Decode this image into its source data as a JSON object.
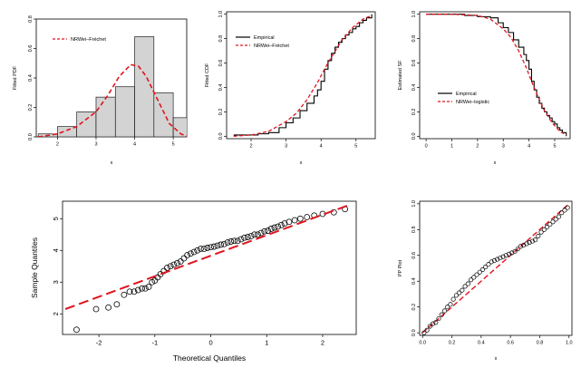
{
  "colors": {
    "fit": "#e0141e",
    "emp": "#000000",
    "bar_fill": "#d3d3d3",
    "point": "#000000"
  },
  "chart_data": [
    {
      "id": "pdf",
      "type": "bar",
      "title": "",
      "xlabel": "x",
      "ylabel": "Fitted PDF",
      "xlim": [
        1.45,
        5.35
      ],
      "ylim": [
        0,
        0.8
      ],
      "xticks": [
        2,
        3,
        4,
        5
      ],
      "yticks": [
        0.0,
        0.2,
        0.4,
        0.6,
        0.8
      ],
      "bins": [
        {
          "x0": 1.5,
          "x1": 2.0,
          "value": 0.02
        },
        {
          "x0": 2.0,
          "x1": 2.5,
          "value": 0.07
        },
        {
          "x0": 2.5,
          "x1": 3.0,
          "value": 0.17
        },
        {
          "x0": 3.0,
          "x1": 3.5,
          "value": 0.27
        },
        {
          "x0": 3.5,
          "x1": 4.0,
          "value": 0.34
        },
        {
          "x0": 4.0,
          "x1": 4.5,
          "value": 0.68
        },
        {
          "x0": 4.5,
          "x1": 5.0,
          "value": 0.3
        },
        {
          "x0": 5.0,
          "x1": 5.5,
          "value": 0.13
        }
      ],
      "curve": {
        "name": "NRWei–Fréchet",
        "x": [
          1.5,
          2.0,
          2.5,
          3.0,
          3.3,
          3.6,
          3.9,
          4.1,
          4.3,
          4.6,
          4.9,
          5.2,
          5.35
        ],
        "y": [
          0.0,
          0.02,
          0.07,
          0.17,
          0.28,
          0.41,
          0.49,
          0.48,
          0.41,
          0.25,
          0.09,
          0.02,
          0.005
        ]
      },
      "legend": [
        {
          "label": "NRWei–Fréchet",
          "style": "dashed-red"
        }
      ],
      "legend_position": "top-left"
    },
    {
      "id": "cdf",
      "type": "line",
      "xlabel": "x",
      "ylabel": "Fitted CDF",
      "xlim": [
        1.3,
        5.55
      ],
      "ylim": [
        -0.02,
        1.02
      ],
      "xticks": [
        2,
        3,
        4,
        5
      ],
      "yticks": [
        0.0,
        0.2,
        0.4,
        0.6,
        0.8,
        1.0
      ],
      "series": [
        {
          "name": "Empirical",
          "style": "step",
          "x": [
            1.5,
            2.2,
            2.5,
            2.8,
            3.0,
            3.2,
            3.4,
            3.6,
            3.8,
            3.9,
            4.0,
            4.1,
            4.2,
            4.3,
            4.4,
            4.5,
            4.6,
            4.7,
            4.8,
            4.9,
            5.0,
            5.1,
            5.2,
            5.3,
            5.45
          ],
          "y": [
            0.01,
            0.02,
            0.03,
            0.07,
            0.11,
            0.15,
            0.21,
            0.27,
            0.33,
            0.38,
            0.45,
            0.55,
            0.62,
            0.68,
            0.73,
            0.77,
            0.8,
            0.83,
            0.85,
            0.88,
            0.9,
            0.93,
            0.95,
            0.97,
            1.0
          ]
        },
        {
          "name": "NRWei–Fréchet",
          "style": "dashed",
          "x": [
            1.5,
            2.0,
            2.5,
            3.0,
            3.3,
            3.6,
            3.9,
            4.1,
            4.3,
            4.6,
            4.9,
            5.2,
            5.45
          ],
          "y": [
            0.0,
            0.01,
            0.04,
            0.12,
            0.19,
            0.3,
            0.44,
            0.55,
            0.65,
            0.79,
            0.89,
            0.96,
            0.99
          ]
        }
      ],
      "legend": [
        {
          "label": "Empirical",
          "style": "solid-black"
        },
        {
          "label": "NRWei–Fréchet",
          "style": "dashed-red"
        }
      ],
      "legend_position": "top-left"
    },
    {
      "id": "sf",
      "type": "line",
      "xlabel": "x",
      "ylabel": "Estimated SF",
      "xlim": [
        -0.25,
        5.6
      ],
      "ylim": [
        -0.02,
        1.02
      ],
      "xticks": [
        0,
        1,
        2,
        3,
        4,
        5
      ],
      "yticks": [
        0.0,
        0.2,
        0.4,
        0.6,
        0.8,
        1.0
      ],
      "series": [
        {
          "name": "Empirical",
          "style": "step",
          "x": [
            0.0,
            1.5,
            2.0,
            2.5,
            2.8,
            3.0,
            3.2,
            3.4,
            3.6,
            3.8,
            3.9,
            4.0,
            4.1,
            4.2,
            4.3,
            4.4,
            4.5,
            4.6,
            4.7,
            4.8,
            4.9,
            5.0,
            5.1,
            5.2,
            5.3,
            5.45
          ],
          "y": [
            1.0,
            0.99,
            0.98,
            0.97,
            0.93,
            0.89,
            0.85,
            0.79,
            0.73,
            0.67,
            0.62,
            0.55,
            0.45,
            0.38,
            0.32,
            0.27,
            0.23,
            0.2,
            0.17,
            0.15,
            0.12,
            0.1,
            0.07,
            0.05,
            0.03,
            0.0
          ]
        },
        {
          "name": "NRWei–logistic",
          "style": "dashed",
          "x": [
            0.0,
            1.0,
            2.0,
            2.5,
            3.0,
            3.3,
            3.6,
            3.9,
            4.1,
            4.3,
            4.6,
            4.9,
            5.2,
            5.45
          ],
          "y": [
            1.0,
            1.0,
            0.99,
            0.96,
            0.88,
            0.81,
            0.7,
            0.56,
            0.45,
            0.35,
            0.21,
            0.11,
            0.04,
            0.01
          ]
        }
      ],
      "legend": [
        {
          "label": "Empirical",
          "style": "solid-black"
        },
        {
          "label": "NRWei–logistic",
          "style": "dashed-red"
        }
      ],
      "legend_position": "right"
    },
    {
      "id": "qq",
      "type": "scatter",
      "xlabel": "Theoretical Quantiles",
      "ylabel": "Sample Quantiles",
      "xlim": [
        -2.65,
        2.6
      ],
      "ylim": [
        1.35,
        5.55
      ],
      "xticks": [
        -2,
        -1,
        0,
        1,
        2
      ],
      "yticks": [
        2,
        3,
        4,
        5
      ],
      "points": {
        "x": [
          -2.4,
          -2.05,
          -1.83,
          -1.68,
          -1.55,
          -1.45,
          -1.37,
          -1.3,
          -1.23,
          -1.17,
          -1.11,
          -1.05,
          -1.0,
          -0.95,
          -0.9,
          -0.84,
          -0.78,
          -0.72,
          -0.66,
          -0.6,
          -0.54,
          -0.48,
          -0.42,
          -0.36,
          -0.3,
          -0.24,
          -0.18,
          -0.12,
          -0.06,
          0.0,
          0.06,
          0.12,
          0.18,
          0.24,
          0.3,
          0.36,
          0.42,
          0.48,
          0.54,
          0.6,
          0.66,
          0.72,
          0.78,
          0.84,
          0.9,
          0.96,
          1.02,
          1.08,
          1.14,
          1.2,
          1.26,
          1.32,
          1.4,
          1.5,
          1.6,
          1.72,
          1.85,
          2.0,
          2.2,
          2.4
        ],
        "y": [
          1.5,
          2.15,
          2.2,
          2.3,
          2.6,
          2.7,
          2.7,
          2.75,
          2.8,
          2.8,
          2.85,
          3.0,
          3.05,
          3.15,
          3.25,
          3.35,
          3.45,
          3.5,
          3.55,
          3.6,
          3.65,
          3.75,
          3.85,
          3.9,
          3.95,
          4.0,
          4.05,
          4.05,
          4.08,
          4.1,
          4.12,
          4.15,
          4.18,
          4.2,
          4.25,
          4.28,
          4.3,
          4.3,
          4.35,
          4.4,
          4.42,
          4.45,
          4.5,
          4.5,
          4.55,
          4.6,
          4.62,
          4.68,
          4.72,
          4.75,
          4.8,
          4.85,
          4.9,
          4.95,
          5.0,
          5.05,
          5.1,
          5.15,
          5.2,
          5.3
        ]
      },
      "reference_line": {
        "x": [
          -2.6,
          2.5
        ],
        "y": [
          2.15,
          5.45
        ]
      }
    },
    {
      "id": "pp",
      "type": "scatter",
      "xlabel": "x",
      "ylabel": "PP Plot",
      "xlim": [
        -0.02,
        1.02
      ],
      "ylim": [
        -0.02,
        1.02
      ],
      "xticks": [
        0.0,
        0.2,
        0.4,
        0.6,
        0.8,
        1.0
      ],
      "yticks": [
        0.0,
        0.2,
        0.4,
        0.6,
        0.8,
        1.0
      ],
      "points": {
        "x": [
          0.01,
          0.03,
          0.05,
          0.07,
          0.09,
          0.11,
          0.13,
          0.15,
          0.17,
          0.19,
          0.21,
          0.23,
          0.25,
          0.27,
          0.29,
          0.31,
          0.33,
          0.35,
          0.37,
          0.39,
          0.41,
          0.43,
          0.45,
          0.47,
          0.49,
          0.51,
          0.53,
          0.55,
          0.57,
          0.59,
          0.61,
          0.63,
          0.65,
          0.67,
          0.69,
          0.71,
          0.73,
          0.75,
          0.77,
          0.79,
          0.81,
          0.83,
          0.85,
          0.87,
          0.89,
          0.91,
          0.93,
          0.95,
          0.97,
          0.99
        ],
        "y": [
          0.0,
          0.02,
          0.05,
          0.07,
          0.08,
          0.11,
          0.14,
          0.17,
          0.2,
          0.22,
          0.26,
          0.29,
          0.31,
          0.33,
          0.36,
          0.38,
          0.41,
          0.43,
          0.45,
          0.47,
          0.49,
          0.51,
          0.53,
          0.55,
          0.56,
          0.57,
          0.58,
          0.59,
          0.6,
          0.61,
          0.62,
          0.63,
          0.65,
          0.67,
          0.68,
          0.69,
          0.7,
          0.71,
          0.72,
          0.75,
          0.78,
          0.8,
          0.82,
          0.84,
          0.86,
          0.88,
          0.9,
          0.93,
          0.95,
          0.97
        ]
      },
      "reference_line": {
        "x": [
          0,
          1
        ],
        "y": [
          0,
          1
        ]
      }
    }
  ]
}
